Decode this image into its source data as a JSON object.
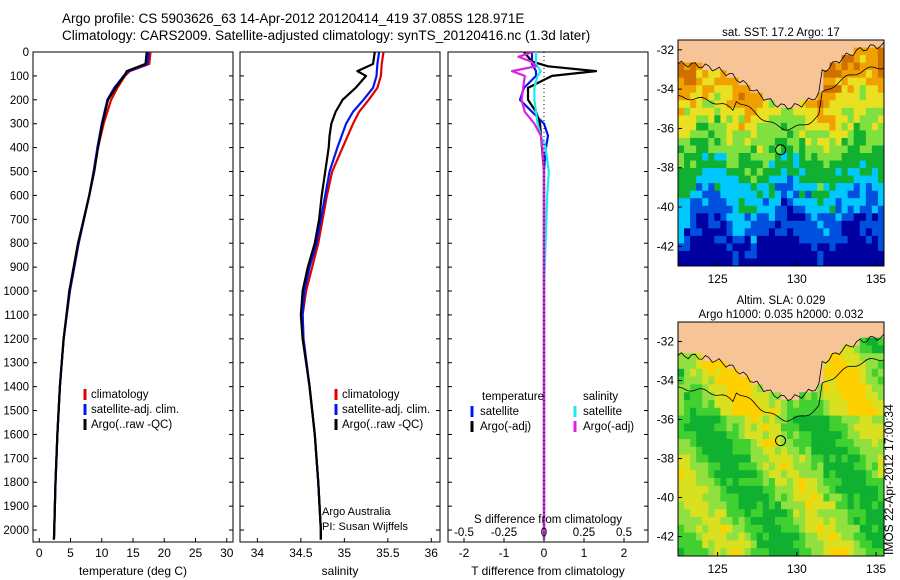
{
  "figure": {
    "title_line1": "Argo profile: CS 5903626_63 14-Apr-2012 20120414_419 37.085S 128.971E",
    "title_line2": "Climatology: CARS2009. Satellite-adjusted climatology: synTS_20120416.nc (1.3d later)",
    "watermark": "IMOS 22-Apr-2012 17:00:34",
    "credit_line1": "Argo Australia",
    "credit_line2": "PI: Susan Wijffels"
  },
  "colors": {
    "climatology": "#e00000",
    "satellite": "#0018f0",
    "argo": "#000000",
    "salinity_satellite": "#20e8f0",
    "salinity_argo": "#e020e0",
    "land": "#f7c497"
  },
  "chart_data": [
    {
      "type": "line",
      "id": "temperature",
      "xlabel": "temperature (deg C)",
      "ylabel": "",
      "xlim": [
        -1,
        31
      ],
      "ylim": [
        2050,
        0
      ],
      "xticks": [
        0,
        5,
        10,
        15,
        20,
        25,
        30
      ],
      "yticks": [
        0,
        100,
        200,
        300,
        400,
        500,
        600,
        700,
        800,
        900,
        1000,
        1100,
        1200,
        1300,
        1400,
        1500,
        1600,
        1700,
        1800,
        1900,
        2000
      ],
      "legend": [
        "climatology",
        "satellite-adj. clim.",
        "Argo(..raw -QC)"
      ],
      "series": [
        {
          "name": "climatology",
          "depth": [
            0,
            50,
            80,
            100,
            150,
            200,
            300,
            400,
            500,
            600,
            800,
            1000,
            1200,
            1400,
            1600,
            1800,
            2000,
            2040
          ],
          "values": [
            17.8,
            17.6,
            14.5,
            13.7,
            12.5,
            11.5,
            10.3,
            9.4,
            8.7,
            8.0,
            6.3,
            4.9,
            3.9,
            3.3,
            2.9,
            2.6,
            2.4,
            2.35
          ]
        },
        {
          "name": "satellite-adj. clim.",
          "depth": [
            0,
            50,
            80,
            100,
            150,
            200,
            300,
            400,
            500,
            600,
            800,
            1000,
            1200,
            1400,
            1600,
            1800,
            2000,
            2040
          ],
          "values": [
            17.5,
            17.3,
            14.3,
            13.5,
            12.0,
            10.9,
            10.0,
            9.3,
            8.7,
            8.0,
            6.3,
            4.9,
            3.9,
            3.3,
            2.9,
            2.6,
            2.4,
            2.35
          ]
        },
        {
          "name": "Argo(..raw -QC)",
          "depth": [
            0,
            50,
            80,
            100,
            150,
            200,
            300,
            400,
            500,
            600,
            800,
            1000,
            1200,
            1400,
            1600,
            1800,
            2000,
            2040
          ],
          "values": [
            17.2,
            17.0,
            14.0,
            13.6,
            12.2,
            11.0,
            10.1,
            9.4,
            8.8,
            8.0,
            6.2,
            4.8,
            3.9,
            3.3,
            2.9,
            2.6,
            2.4,
            2.35
          ]
        }
      ]
    },
    {
      "type": "line",
      "id": "salinity",
      "xlabel": "salinity",
      "ylabel": "",
      "xlim": [
        33.8,
        36.1
      ],
      "ylim": [
        2050,
        0
      ],
      "xticks": [
        34,
        34.5,
        35,
        35.5,
        36
      ],
      "legend": [
        "climatology",
        "satellite-adj. clim.",
        "Argo(..raw -QC)"
      ],
      "series": [
        {
          "name": "climatology",
          "depth": [
            0,
            50,
            100,
            150,
            200,
            250,
            300,
            400,
            500,
            600,
            700,
            800,
            900,
            1000,
            1100,
            1200,
            1400,
            1600,
            1800,
            2000,
            2040
          ],
          "values": [
            35.45,
            35.43,
            35.42,
            35.38,
            35.28,
            35.17,
            35.1,
            34.98,
            34.86,
            34.8,
            34.75,
            34.7,
            34.63,
            34.56,
            34.52,
            34.53,
            34.6,
            34.66,
            34.7,
            34.73,
            34.73
          ]
        },
        {
          "name": "satellite-adj. clim.",
          "depth": [
            0,
            50,
            100,
            150,
            200,
            250,
            300,
            400,
            500,
            600,
            700,
            800,
            900,
            1000,
            1100,
            1200,
            1400,
            1600,
            1800,
            2000,
            2040
          ],
          "values": [
            35.4,
            35.38,
            35.37,
            35.33,
            35.22,
            35.1,
            35.02,
            34.92,
            34.83,
            34.78,
            34.73,
            34.68,
            34.6,
            34.54,
            34.52,
            34.53,
            34.6,
            34.66,
            34.7,
            34.73,
            34.73
          ]
        },
        {
          "name": "Argo(..raw -QC)",
          "depth": [
            0,
            50,
            80,
            100,
            150,
            200,
            250,
            300,
            350,
            400,
            500,
            600,
            700,
            800,
            900,
            1000,
            1100,
            1200,
            1400,
            1600,
            1800,
            2000,
            2040
          ],
          "values": [
            35.35,
            35.33,
            35.15,
            35.25,
            35.13,
            34.98,
            34.9,
            34.85,
            34.83,
            34.82,
            34.78,
            34.74,
            34.71,
            34.66,
            34.58,
            34.52,
            34.5,
            34.52,
            34.6,
            34.66,
            34.7,
            34.73,
            34.73
          ]
        }
      ]
    },
    {
      "type": "line",
      "id": "difference",
      "xlabel": "T difference from climatology",
      "top_axis_label": "S difference from climatology",
      "xlim": [
        -2.4,
        2.6
      ],
      "ylim": [
        2050,
        0
      ],
      "xticks": [
        -2,
        -1,
        0,
        1,
        2
      ],
      "top_ticks": [
        -0.5,
        -0.25,
        0,
        0.25,
        0.5
      ],
      "legend_left_title": "temperature",
      "legend_right_title": "salinity",
      "legend": [
        "satellite",
        "Argo(-adj)",
        "satellite",
        "Argo(-adj)"
      ],
      "series": [
        {
          "name": "temperature satellite",
          "axis": "T",
          "depth": [
            0,
            50,
            80,
            100,
            150,
            200,
            250,
            300,
            350,
            400,
            450,
            500,
            600,
            800,
            1000,
            1500,
            2040
          ],
          "values": [
            -0.3,
            -0.3,
            -0.2,
            -0.2,
            -0.5,
            -0.6,
            -0.3,
            0.0,
            0.1,
            0.05,
            0.02,
            0.0,
            0.0,
            0.0,
            0.0,
            0.0,
            0.0
          ]
        },
        {
          "name": "temperature Argo(-adj)",
          "axis": "T",
          "depth": [
            0,
            40,
            60,
            80,
            100,
            150,
            200,
            250,
            300,
            400,
            500,
            600,
            800,
            1000,
            1200,
            1500,
            2040
          ],
          "values": [
            -0.5,
            -0.3,
            0.1,
            1.3,
            0.2,
            -0.4,
            -0.4,
            -0.2,
            -0.1,
            -0.05,
            0.0,
            0.0,
            0.0,
            0.0,
            0.0,
            0.0,
            0.0
          ]
        },
        {
          "name": "salinity satellite",
          "axis": "S",
          "depth": [
            0,
            50,
            80,
            100,
            150,
            200,
            250,
            300,
            350,
            400,
            500,
            600,
            800,
            1000,
            1500,
            2040
          ],
          "values": [
            -0.05,
            -0.05,
            -0.02,
            -0.04,
            -0.06,
            -0.06,
            -0.05,
            -0.04,
            -0.02,
            0.01,
            0.03,
            0.02,
            0.01,
            0.0,
            0.0,
            0.0
          ]
        },
        {
          "name": "salinity Argo(-adj)",
          "axis": "S",
          "depth": [
            0,
            20,
            40,
            60,
            80,
            100,
            150,
            200,
            250,
            300,
            350,
            400,
            500,
            600,
            800,
            1000,
            1200,
            1500,
            2040
          ],
          "values": [
            -0.07,
            -0.16,
            -0.08,
            -0.05,
            -0.2,
            -0.12,
            -0.13,
            -0.14,
            -0.12,
            -0.06,
            -0.02,
            -0.01,
            0.0,
            0.0,
            0.0,
            0.0,
            0.0,
            0.0,
            0.0
          ]
        }
      ]
    },
    {
      "type": "heatmap",
      "id": "sst_map",
      "title": "sat. SST: 17.2  Argo: 17",
      "xlim": [
        122.5,
        135.5
      ],
      "ylim": [
        -43,
        -31.5
      ],
      "xticks": [
        125,
        130,
        135
      ],
      "yticks": [
        -32,
        -34,
        -36,
        -38,
        -40,
        -42
      ],
      "marker": {
        "lon": 128.971,
        "lat": -37.085
      },
      "colors": [
        "#0000a0",
        "#0050e0",
        "#00c8ff",
        "#10b030",
        "#80e040",
        "#e8e020",
        "#f0a000",
        "#d07000"
      ]
    },
    {
      "type": "heatmap",
      "id": "sla_map",
      "title_line1": "Altim. SLA: 0.029",
      "title_line2": "Argo h1000: 0.035  h2000: 0.032",
      "xlim": [
        122.5,
        135.5
      ],
      "ylim": [
        -43,
        -31
      ],
      "xticks": [
        125,
        130,
        135
      ],
      "yticks": [
        -32,
        -34,
        -36,
        -38,
        -40,
        -42
      ],
      "marker": {
        "lon": 128.971,
        "lat": -37.085
      },
      "colors": [
        "#10b030",
        "#40d030",
        "#90e040",
        "#d8e020",
        "#ffd000"
      ]
    }
  ]
}
